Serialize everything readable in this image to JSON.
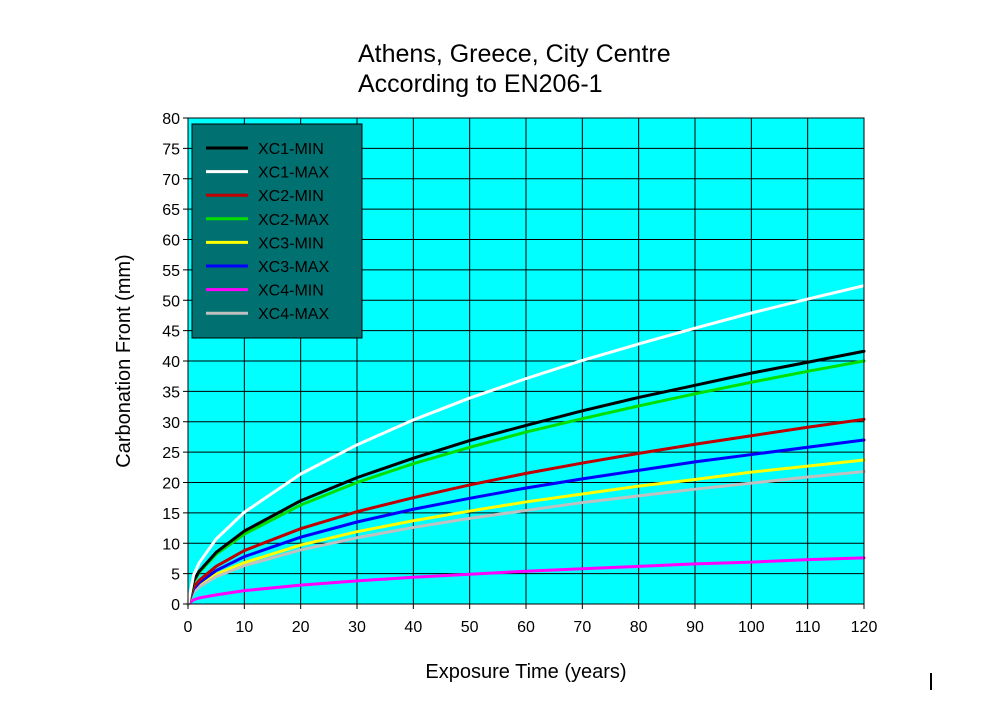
{
  "chart_data": {
    "type": "line",
    "title_lines": [
      "Athens, Greece, City Centre",
      "According to EN206-1"
    ],
    "xlabel": "Exposure Time (years)",
    "ylabel": "Carbonation Front (mm)",
    "xlim": [
      0,
      120
    ],
    "ylim": [
      0,
      80
    ],
    "x_ticks": [
      "0",
      "10",
      "20",
      "30",
      "40",
      "50",
      "60",
      "70",
      "80",
      "90",
      "100",
      "110",
      "120"
    ],
    "y_ticks": [
      "0",
      "5",
      "10",
      "15",
      "20",
      "25",
      "30",
      "35",
      "40",
      "45",
      "50",
      "55",
      "60",
      "65",
      "70",
      "75",
      "80"
    ],
    "grid": true,
    "legend_position": "top-left",
    "plot_background": "#00ffff",
    "legend_background": "#007070",
    "x": [
      0,
      1,
      2,
      5,
      10,
      20,
      30,
      40,
      50,
      60,
      70,
      80,
      90,
      100,
      110,
      120
    ],
    "series": [
      {
        "name": "XC1-MIN",
        "color": "#000000",
        "values": [
          0,
          3.8,
          5.4,
          8.5,
          12.0,
          17.0,
          20.8,
          24.0,
          26.9,
          29.4,
          31.8,
          34.0,
          36.0,
          38.0,
          39.8,
          41.6
        ]
      },
      {
        "name": "XC1-MAX",
        "color": "#ffffff",
        "values": [
          0,
          4.8,
          6.8,
          10.7,
          15.1,
          21.4,
          26.2,
          30.3,
          33.9,
          37.1,
          40.1,
          42.8,
          45.4,
          47.9,
          50.2,
          52.4
        ]
      },
      {
        "name": "XC2-MIN",
        "color": "#c00000",
        "values": [
          0,
          2.8,
          3.9,
          6.2,
          8.8,
          12.4,
          15.2,
          17.5,
          19.6,
          21.5,
          23.2,
          24.8,
          26.3,
          27.7,
          29.1,
          30.4
        ]
      },
      {
        "name": "XC2-MAX",
        "color": "#00e000",
        "values": [
          0,
          3.6,
          5.2,
          8.2,
          11.5,
          16.3,
          20.0,
          23.1,
          25.8,
          28.3,
          30.5,
          32.6,
          34.6,
          36.5,
          38.3,
          40.0
        ]
      },
      {
        "name": "XC3-MIN",
        "color": "#ffff00",
        "values": [
          0,
          2.2,
          3.1,
          4.9,
          6.8,
          9.7,
          11.9,
          13.7,
          15.3,
          16.8,
          18.1,
          19.4,
          20.5,
          21.7,
          22.7,
          23.7
        ]
      },
      {
        "name": "XC3-MAX",
        "color": "#0000ff",
        "values": [
          0,
          2.5,
          3.5,
          5.5,
          7.8,
          11.0,
          13.5,
          15.6,
          17.4,
          19.1,
          20.6,
          22.0,
          23.4,
          24.6,
          25.8,
          27.0
        ]
      },
      {
        "name": "XC4-MIN",
        "color": "#ff00ff",
        "values": [
          0,
          0.7,
          1.0,
          1.5,
          2.2,
          3.1,
          3.8,
          4.4,
          4.9,
          5.4,
          5.8,
          6.2,
          6.6,
          6.9,
          7.3,
          7.6
        ]
      },
      {
        "name": "XC4-MAX",
        "color": "#c0c0c0",
        "values": [
          0,
          2.0,
          2.8,
          4.5,
          6.3,
          8.9,
          10.9,
          12.6,
          14.1,
          15.4,
          16.7,
          17.8,
          18.9,
          19.9,
          20.9,
          21.8
        ]
      }
    ]
  }
}
